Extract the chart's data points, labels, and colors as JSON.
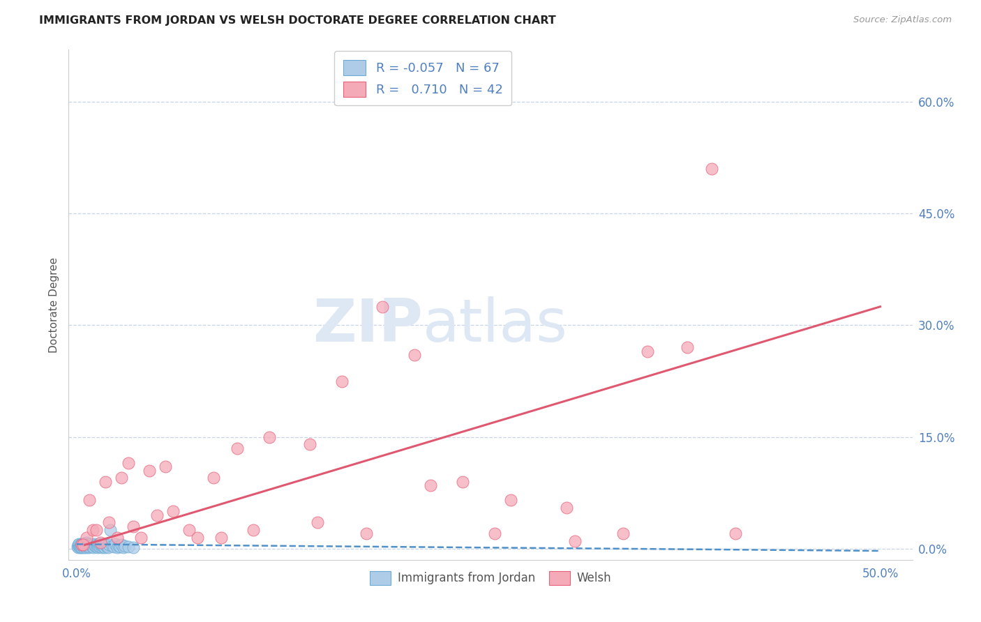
{
  "title": "IMMIGRANTS FROM JORDAN VS WELSH DOCTORATE DEGREE CORRELATION CHART",
  "source": "Source: ZipAtlas.com",
  "ylabel": "Doctorate Degree",
  "ytick_values": [
    0.0,
    15.0,
    30.0,
    45.0,
    60.0
  ],
  "xlim": [
    -0.5,
    52.0
  ],
  "ylim": [
    -1.5,
    67.0
  ],
  "legend_blue_r": "-0.057",
  "legend_blue_n": "67",
  "legend_pink_r": "0.710",
  "legend_pink_n": "42",
  "blue_color": "#aecce8",
  "pink_color": "#f5aab8",
  "blue_edge_color": "#6aaad4",
  "pink_edge_color": "#e8607a",
  "blue_line_color": "#5090c8",
  "pink_line_color": "#e05870",
  "grid_color": "#c8d4e8",
  "title_color": "#222222",
  "axis_label_color": "#5080c0",
  "blue_scatter_x": [
    0.05,
    0.08,
    0.1,
    0.12,
    0.15,
    0.18,
    0.2,
    0.22,
    0.25,
    0.28,
    0.3,
    0.32,
    0.35,
    0.38,
    0.4,
    0.42,
    0.45,
    0.48,
    0.5,
    0.52,
    0.55,
    0.58,
    0.6,
    0.62,
    0.65,
    0.68,
    0.7,
    0.72,
    0.75,
    0.78,
    0.8,
    0.85,
    0.9,
    0.95,
    1.0,
    1.05,
    1.1,
    1.15,
    1.2,
    1.25,
    1.3,
    1.35,
    1.4,
    1.45,
    1.5,
    1.55,
    1.6,
    1.65,
    1.7,
    1.75,
    1.8,
    1.85,
    1.9,
    1.95,
    2.0,
    2.1,
    2.2,
    2.3,
    2.4,
    2.5,
    2.6,
    2.7,
    2.8,
    2.9,
    3.0,
    3.2,
    3.5
  ],
  "blue_scatter_y": [
    0.3,
    0.5,
    0.2,
    0.4,
    0.6,
    0.3,
    0.5,
    0.2,
    0.4,
    0.3,
    0.6,
    0.2,
    0.4,
    0.5,
    0.3,
    0.7,
    0.2,
    0.4,
    0.5,
    0.3,
    0.6,
    0.2,
    0.8,
    0.4,
    0.5,
    0.3,
    0.6,
    0.4,
    0.2,
    0.5,
    0.3,
    0.6,
    0.4,
    0.3,
    0.5,
    0.2,
    0.6,
    0.4,
    0.3,
    0.5,
    0.2,
    0.4,
    0.6,
    0.3,
    0.5,
    0.2,
    0.4,
    0.3,
    0.6,
    0.2,
    0.5,
    0.3,
    0.4,
    0.2,
    0.5,
    2.5,
    0.4,
    0.3,
    0.6,
    0.2,
    0.4,
    0.3,
    0.5,
    0.2,
    0.4,
    0.3,
    0.2
  ],
  "pink_scatter_x": [
    0.3,
    0.6,
    1.0,
    1.5,
    2.0,
    2.8,
    3.5,
    4.5,
    5.5,
    7.0,
    8.5,
    10.0,
    12.0,
    14.5,
    16.5,
    19.0,
    21.0,
    24.0,
    27.0,
    30.5,
    34.0,
    38.0,
    41.0,
    0.8,
    1.8,
    2.5,
    3.2,
    4.0,
    6.0,
    9.0,
    11.0,
    15.0,
    18.0,
    22.0,
    26.0,
    31.0,
    35.5,
    39.5,
    0.4,
    1.2,
    5.0,
    7.5
  ],
  "pink_scatter_y": [
    0.5,
    1.5,
    2.5,
    0.8,
    3.5,
    9.5,
    3.0,
    10.5,
    11.0,
    2.5,
    9.5,
    13.5,
    15.0,
    14.0,
    22.5,
    32.5,
    26.0,
    9.0,
    6.5,
    5.5,
    2.0,
    27.0,
    2.0,
    6.5,
    9.0,
    1.5,
    11.5,
    1.5,
    5.0,
    1.5,
    2.5,
    3.5,
    2.0,
    8.5,
    2.0,
    1.0,
    26.5,
    51.0,
    0.5,
    2.5,
    4.5,
    1.5
  ],
  "blue_trendline_x": [
    0.0,
    50.0
  ],
  "blue_trendline_y": [
    0.6,
    -0.3
  ],
  "pink_trendline_x": [
    0.5,
    50.0
  ],
  "pink_trendline_y": [
    0.5,
    32.5
  ]
}
